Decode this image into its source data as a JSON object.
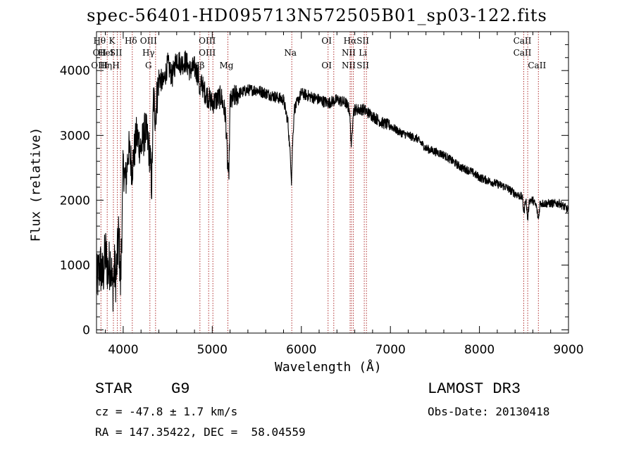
{
  "header": {
    "title": "spec-56401-HD095713N572505B01_sp03-122.fits"
  },
  "chart_data": {
    "type": "line",
    "title": "spec-56401-HD095713N572505B01_sp03-122.fits",
    "xlabel": "Wavelength (Å)",
    "ylabel": "Flux (relative)",
    "xlim": [
      3700,
      9000
    ],
    "ylim": [
      -50,
      4600
    ],
    "x_ticks": [
      "4000",
      "5000",
      "6000",
      "7000",
      "8000",
      "9000"
    ],
    "y_ticks": [
      "0",
      "1000",
      "2000",
      "3000",
      "4000"
    ],
    "x_tick_values": [
      4000,
      5000,
      6000,
      7000,
      8000,
      9000
    ],
    "y_tick_values": [
      0,
      1000,
      2000,
      3000,
      4000
    ],
    "grid": false,
    "line_color": "#000000",
    "marker_color": "#b03030",
    "series": [
      {
        "name": "spectrum",
        "x": [
          3700,
          3740,
          3770,
          3800,
          3830,
          3860,
          3880,
          3900,
          3920,
          3950,
          3970,
          4000,
          4030,
          4060,
          4100,
          4150,
          4200,
          4250,
          4300,
          4320,
          4340,
          4360,
          4400,
          4450,
          4500,
          4550,
          4600,
          4650,
          4700,
          4750,
          4800,
          4850,
          4860,
          4880,
          4900,
          4950,
          5000,
          5050,
          5100,
          5150,
          5170,
          5185,
          5200,
          5250,
          5300,
          5400,
          5500,
          5600,
          5700,
          5800,
          5850,
          5880,
          5890,
          5900,
          5920,
          6000,
          6100,
          6200,
          6300,
          6400,
          6500,
          6540,
          6563,
          6580,
          6600,
          6700,
          6800,
          6900,
          7000,
          7100,
          7200,
          7300,
          7400,
          7500,
          7600,
          7700,
          7800,
          7900,
          8000,
          8100,
          8200,
          8300,
          8400,
          8480,
          8500,
          8520,
          8542,
          8560,
          8600,
          8640,
          8662,
          8680,
          8700,
          8800,
          8900,
          9000
        ],
        "y": [
          700,
          1000,
          800,
          1200,
          900,
          1100,
          600,
          950,
          800,
          1500,
          700,
          2500,
          2300,
          2800,
          2500,
          3000,
          2800,
          3100,
          2700,
          2200,
          3600,
          3300,
          3900,
          3800,
          4100,
          3900,
          4200,
          4100,
          4150,
          4000,
          4050,
          3900,
          3600,
          3850,
          3700,
          3600,
          3500,
          3550,
          3600,
          3300,
          2600,
          2300,
          3500,
          3600,
          3650,
          3700,
          3700,
          3650,
          3600,
          3550,
          3200,
          2600,
          2300,
          2800,
          3400,
          3650,
          3600,
          3550,
          3500,
          3550,
          3500,
          3400,
          2800,
          3350,
          3400,
          3400,
          3300,
          3200,
          3150,
          3050,
          3000,
          2950,
          2800,
          2750,
          2700,
          2600,
          2500,
          2450,
          2350,
          2300,
          2250,
          2200,
          2100,
          2050,
          1800,
          2050,
          1700,
          2000,
          2000,
          1900,
          1700,
          1950,
          1950,
          1950,
          1950,
          1850
        ]
      }
    ],
    "line_markers": [
      {
        "x": 3750,
        "labels": [
          "Hθ",
          "OII",
          "OIII"
        ]
      },
      {
        "x": 3820,
        "labels": [
          "",
          "HeI",
          "Hη"
        ]
      },
      {
        "x": 3890,
        "labels": [
          "K",
          "",
          ""
        ]
      },
      {
        "x": 3934,
        "labels": [
          "",
          "SII",
          "H"
        ]
      },
      {
        "x": 3970,
        "labels": [
          "",
          "",
          ""
        ]
      },
      {
        "x": 4102,
        "labels": [
          "Hδ",
          "",
          ""
        ]
      },
      {
        "x": 4300,
        "labels": [
          "OIII",
          "Hγ",
          "G"
        ]
      },
      {
        "x": 4363,
        "labels": [
          "",
          "",
          ""
        ]
      },
      {
        "x": 4861,
        "labels": [
          "",
          "",
          "Hβ"
        ]
      },
      {
        "x": 4959,
        "labels": [
          "OIII",
          "OIII",
          ""
        ]
      },
      {
        "x": 5007,
        "labels": [
          "",
          "",
          ""
        ]
      },
      {
        "x": 5175,
        "labels": [
          "",
          "",
          "Mg"
        ]
      },
      {
        "x": 5893,
        "labels": [
          "",
          "Na",
          ""
        ]
      },
      {
        "x": 6300,
        "labels": [
          "OI",
          "",
          "OI"
        ]
      },
      {
        "x": 6364,
        "labels": [
          "",
          "",
          ""
        ]
      },
      {
        "x": 6548,
        "labels": [
          "",
          "NII",
          "NII"
        ]
      },
      {
        "x": 6563,
        "labels": [
          "Hα",
          "",
          ""
        ]
      },
      {
        "x": 6583,
        "labels": [
          "",
          "",
          ""
        ]
      },
      {
        "x": 6707,
        "labels": [
          "SII",
          "Li",
          "SII"
        ]
      },
      {
        "x": 6731,
        "labels": [
          "",
          "",
          ""
        ]
      },
      {
        "x": 8498,
        "labels": [
          "CaII",
          "CaII",
          ""
        ]
      },
      {
        "x": 8542,
        "labels": [
          "",
          "",
          ""
        ]
      },
      {
        "x": 8662,
        "labels": [
          "",
          "",
          "CaII"
        ]
      }
    ]
  },
  "info": {
    "object_class": "STAR",
    "subclass": "G9",
    "redshift_line": "cz = -47.8 ± 1.7 km/s",
    "coords_line": "RA = 147.35422, DEC =  58.04559",
    "survey": "LAMOST DR3",
    "obs_date_line": "Obs-Date: 20130418"
  }
}
